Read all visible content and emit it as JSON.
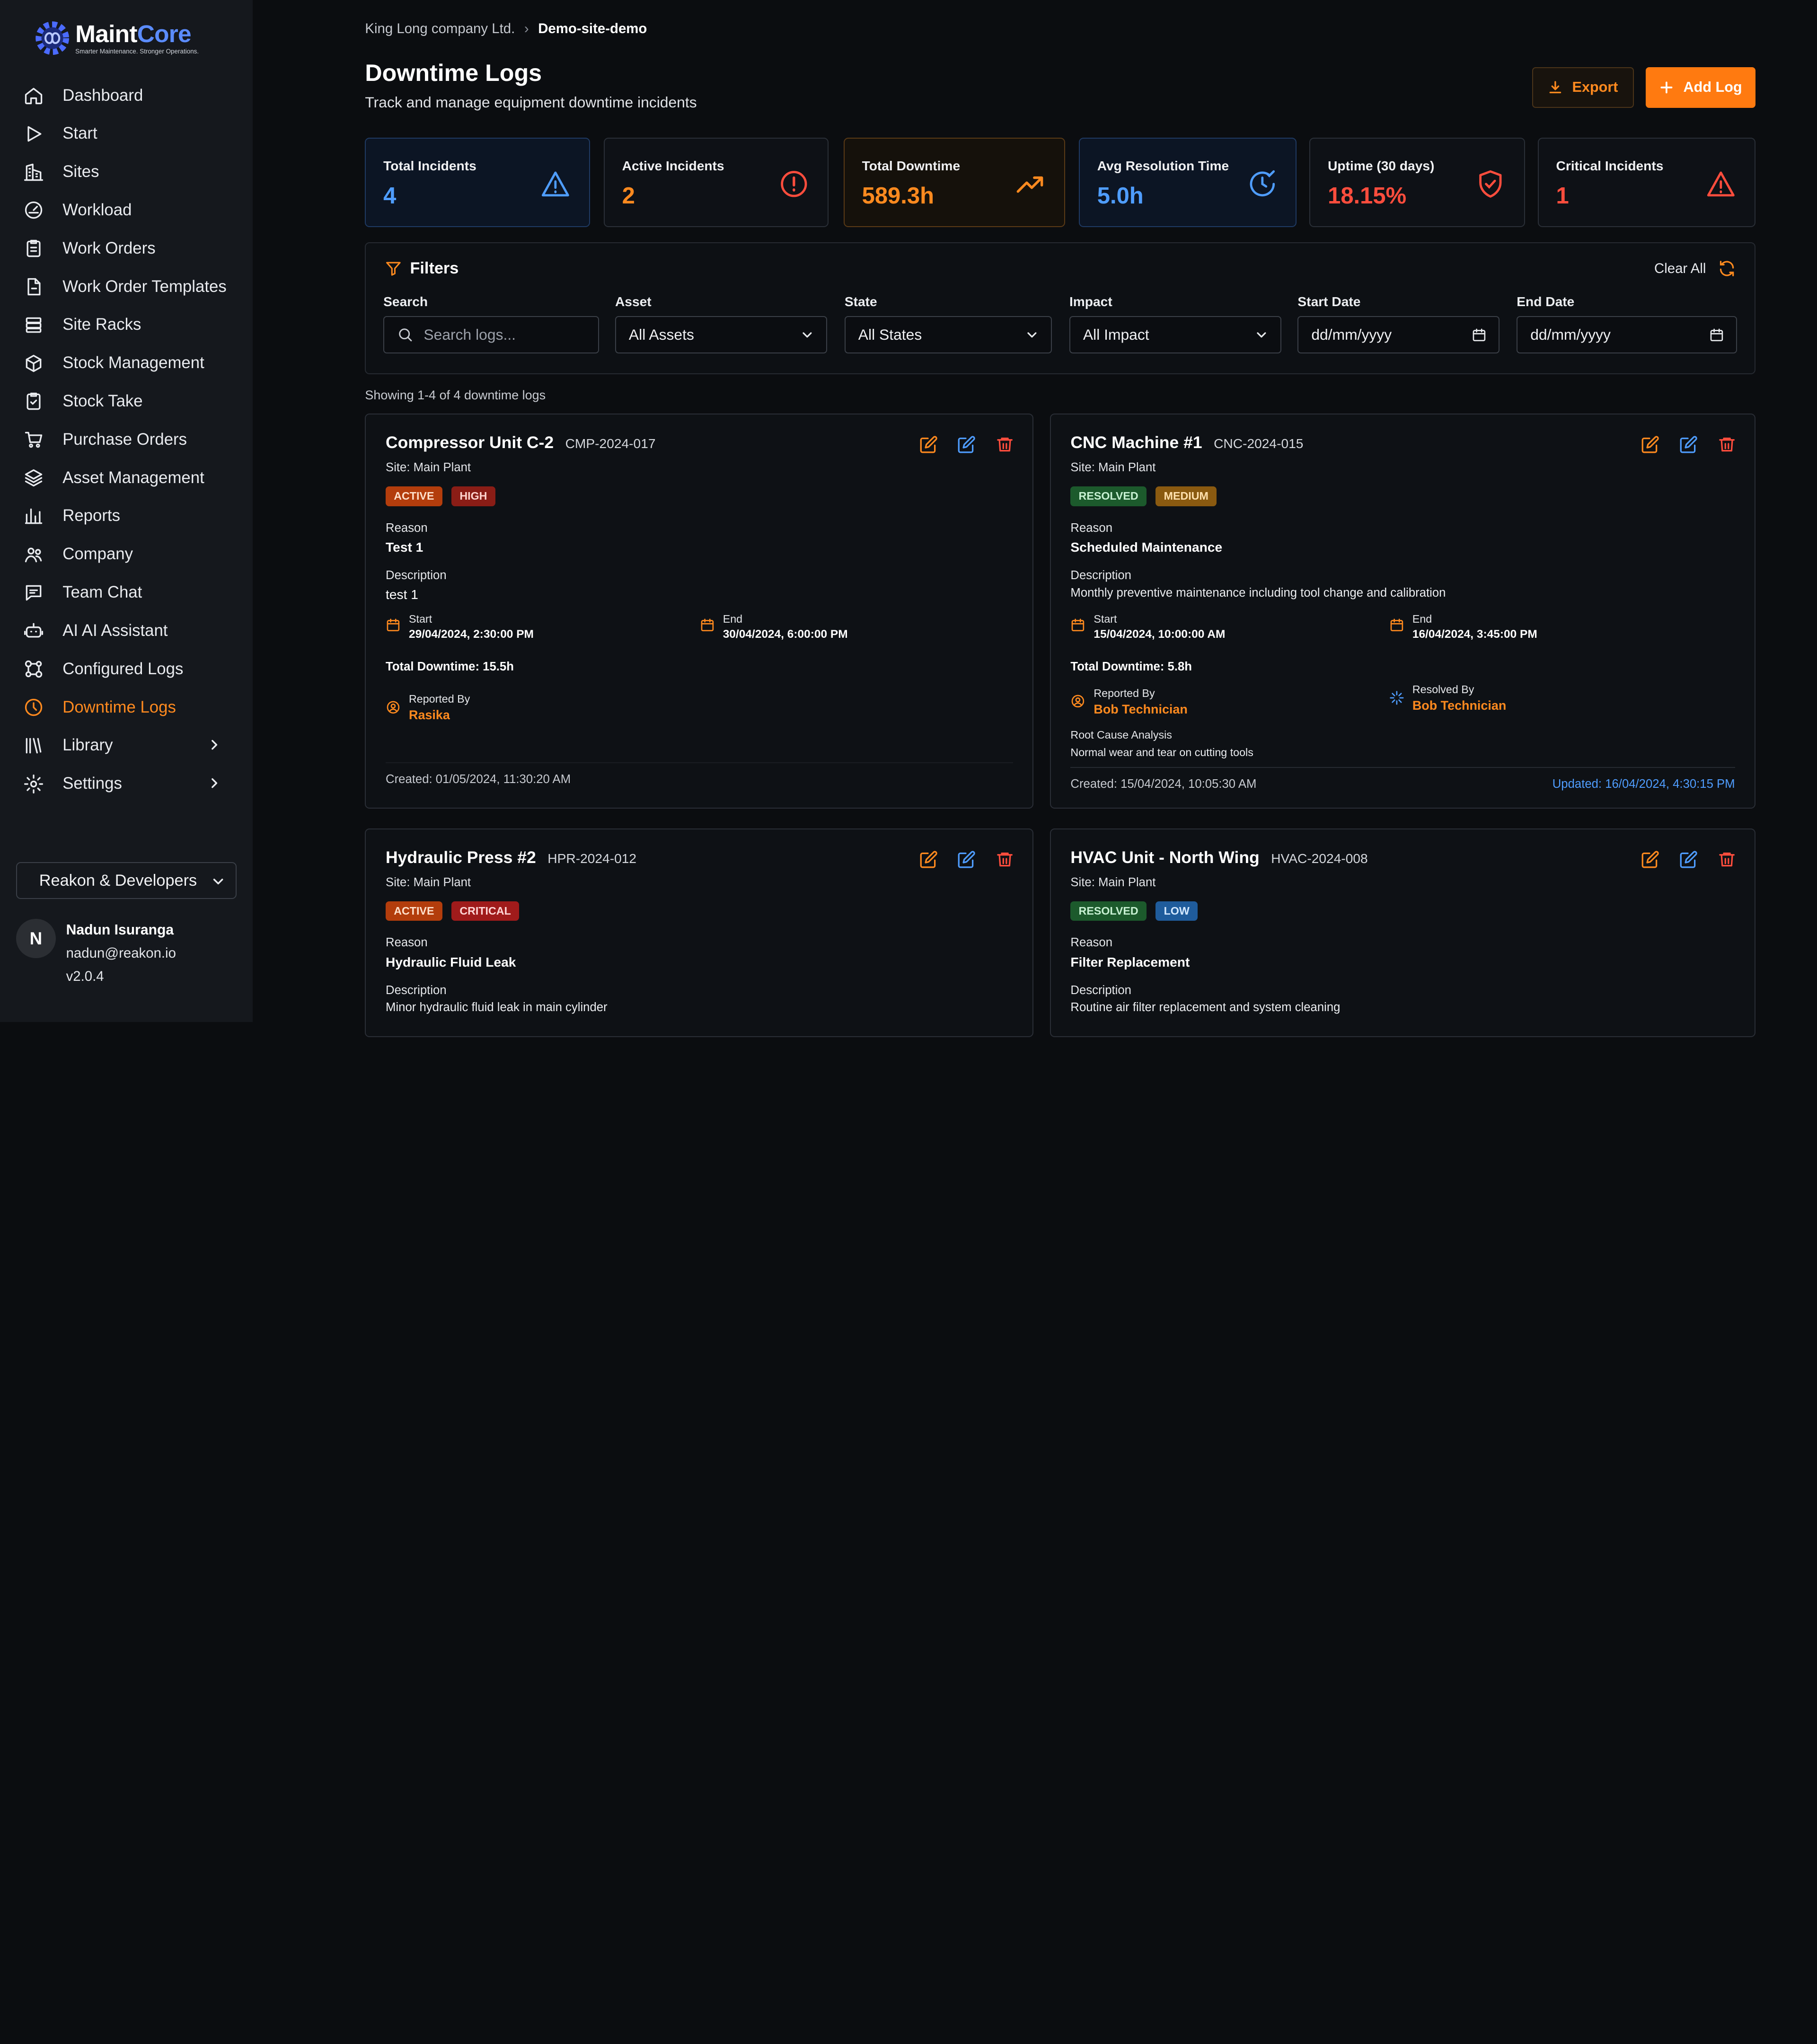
{
  "brand": {
    "name_a": "Maint",
    "name_b": "Core",
    "tagline": "Smarter Maintenance. Stronger Operations.",
    "accent": "#ff8a1f",
    "blue": "#5b8cff"
  },
  "sidebar": {
    "items": [
      {
        "label": "Dashboard",
        "icon": "home-icon"
      },
      {
        "label": "Start",
        "icon": "play-icon"
      },
      {
        "label": "Sites",
        "icon": "building-icon"
      },
      {
        "label": "Workload",
        "icon": "gauge-icon"
      },
      {
        "label": "Work Orders",
        "icon": "clipboard-icon"
      },
      {
        "label": "Work Order Templates",
        "icon": "file-icon"
      },
      {
        "label": "Site Racks",
        "icon": "rack-icon"
      },
      {
        "label": "Stock Management",
        "icon": "box-icon"
      },
      {
        "label": "Stock Take",
        "icon": "clipboard-check-icon"
      },
      {
        "label": "Purchase Orders",
        "icon": "cart-icon"
      },
      {
        "label": "Asset Management",
        "icon": "layers-icon"
      },
      {
        "label": "Reports",
        "icon": "bar-chart-icon"
      },
      {
        "label": "Company",
        "icon": "users-icon"
      },
      {
        "label": "Team Chat",
        "icon": "chat-icon"
      },
      {
        "label": "AI AI Assistant",
        "icon": "bot-icon"
      },
      {
        "label": "Configured Logs",
        "icon": "nodes-icon"
      },
      {
        "label": "Downtime Logs",
        "icon": "clock-icon",
        "active": true
      },
      {
        "label": "Library",
        "icon": "library-icon",
        "chevron": true
      },
      {
        "label": "Settings",
        "icon": "gear-icon",
        "chevron": true
      }
    ],
    "org": "Reakon & Developers",
    "user": {
      "initial": "N",
      "name": "Nadun Isuranga",
      "email": "nadun@reakon.io",
      "version": "v2.0.4"
    }
  },
  "header": {
    "breadcrumb_company": "King Long company Ltd.",
    "breadcrumb_site": "Demo-site-demo",
    "title": "Downtime Logs",
    "subtitle": "Track and manage equipment downtime incidents",
    "export_label": "Export",
    "add_label": "Add Log"
  },
  "stats": [
    {
      "label": "Total Incidents",
      "value": "4",
      "color": "#4f9dff",
      "icon": "alert-triangle-icon"
    },
    {
      "label": "Active Incidents",
      "value": "2",
      "color": "#ff8a1f",
      "icon": "alert-circle-icon"
    },
    {
      "label": "Total Downtime",
      "value": "589.3h",
      "color": "#ff8a1f",
      "icon": "trending-up-icon"
    },
    {
      "label": "Avg Resolution Time",
      "value": "5.0h",
      "color": "#4f9dff",
      "icon": "clock-check-icon"
    },
    {
      "label": "Uptime (30 days)",
      "value": "18.15%",
      "color": "#ff4d3d",
      "icon": "shield-check-icon"
    },
    {
      "label": "Critical Incidents",
      "value": "1",
      "color": "#ff4d3d",
      "icon": "warning-icon"
    }
  ],
  "filters": {
    "title": "Filters",
    "clear_label": "Clear All",
    "search_label": "Search",
    "search_placeholder": "Search logs...",
    "asset_label": "Asset",
    "asset_value": "All Assets",
    "state_label": "State",
    "state_value": "All States",
    "impact_label": "Impact",
    "impact_value": "All Impact",
    "start_label": "Start Date",
    "start_value": "dd/mm/yyyy",
    "end_label": "End Date",
    "end_value": "dd/mm/yyyy"
  },
  "showing": "Showing 1-4 of 4 downtime logs",
  "logs": [
    {
      "name": "Compressor Unit C-2",
      "code": "CMP-2024-017",
      "site": "Site: Main Plant",
      "state": "ACTIVE",
      "impact": "HIGH",
      "reason_label": "Reason",
      "reason": "Test 1",
      "desc_label": "Description",
      "description": "test 1",
      "start_label": "Start",
      "start": "29/04/2024, 2:30:00 PM",
      "end_label": "End",
      "end": "30/04/2024, 6:00:00 PM",
      "total": "Total Downtime: 15.5h",
      "reported_label": "Reported By",
      "reported_by": "Rasika",
      "created": "Created: 01/05/2024, 11:30:20 AM"
    },
    {
      "name": "CNC Machine #1",
      "code": "CNC-2024-015",
      "site": "Site: Main Plant",
      "state": "RESOLVED",
      "impact": "MEDIUM",
      "reason_label": "Reason",
      "reason": "Scheduled Maintenance",
      "desc_label": "Description",
      "description": "Monthly preventive maintenance including tool change and calibration",
      "start_label": "Start",
      "start": "15/04/2024, 10:00:00 AM",
      "end_label": "End",
      "end": "16/04/2024, 3:45:00 PM",
      "total": "Total Downtime: 5.8h",
      "reported_label": "Reported By",
      "reported_by": "Bob Technician",
      "resolved_label": "Resolved By",
      "resolved_by": "Bob Technician",
      "rca_label": "Root Cause Analysis",
      "rca": "Normal wear and tear on cutting tools",
      "created": "Created: 15/04/2024, 10:05:30 AM",
      "updated": "Updated: 16/04/2024, 4:30:15 PM"
    },
    {
      "name": "Hydraulic Press #2",
      "code": "HPR-2024-012",
      "site": "Site: Main Plant",
      "state": "ACTIVE",
      "impact": "CRITICAL",
      "reason_label": "Reason",
      "reason": "Hydraulic Fluid Leak",
      "desc_label": "Description",
      "description": "Minor hydraulic fluid leak in main cylinder"
    },
    {
      "name": "HVAC Unit - North Wing",
      "code": "HVAC-2024-008",
      "site": "Site: Main Plant",
      "state": "RESOLVED",
      "impact": "LOW",
      "reason_label": "Reason",
      "reason": "Filter Replacement",
      "desc_label": "Description",
      "description": "Routine air filter replacement and system cleaning"
    }
  ]
}
